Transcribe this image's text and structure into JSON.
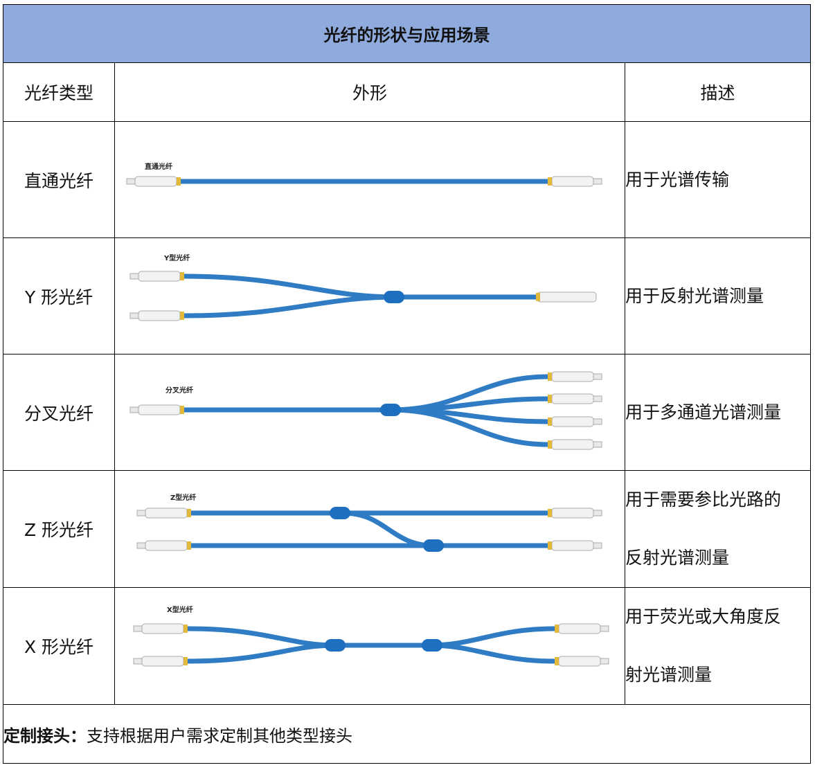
{
  "table": {
    "title": "光纤的形状与应用场景",
    "headers": [
      "光纤类型",
      "外形",
      "描述"
    ],
    "rows": [
      {
        "type": "直通光纤",
        "image_label": "直通光纤",
        "description": [
          "用于光谱传输"
        ]
      },
      {
        "type": "Y 形光纤",
        "image_label": "Y型光纤",
        "description": [
          "用于反射光谱测量"
        ]
      },
      {
        "type": "分叉光纤",
        "image_label": "分叉光纤",
        "description": [
          "用于多通道光谱测量"
        ]
      },
      {
        "type": "Z 形光纤",
        "image_label": "Z型光纤",
        "description": [
          "用于需要参比光路的",
          "反射光谱测量"
        ]
      },
      {
        "type": "X 形光纤",
        "image_label": "X型光纤",
        "description": [
          "用于荧光或大角度反",
          "射光谱测量"
        ]
      }
    ],
    "footer": {
      "label": "定制接头：",
      "text": "支持根据用户需求定制其他类型接头"
    }
  }
}
